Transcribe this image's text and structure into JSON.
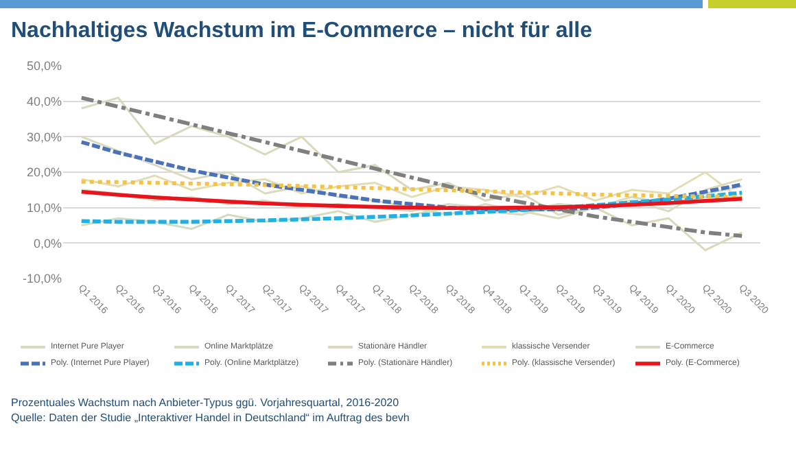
{
  "chart_data": {
    "type": "line",
    "title": "Nachhaltiges Wachstum im E-Commerce – nicht für alle",
    "categories": [
      "Q1 2016",
      "Q2 2016",
      "Q3 2016",
      "Q4 2016",
      "Q1 2017",
      "Q2 2017",
      "Q3 2017",
      "Q4 2017",
      "Q1 2018",
      "Q2 2018",
      "Q3 2018",
      "Q4 2018",
      "Q1 2019",
      "Q2 2019",
      "Q3 2019",
      "Q4 2019",
      "Q1 2020",
      "Q2 2020",
      "Q3 2020"
    ],
    "series": [
      {
        "name": "Internet Pure Player",
        "color": "#d9dcbc",
        "line_style": "solid",
        "values": [
          30,
          26,
          22,
          18,
          20,
          14,
          16,
          13,
          12,
          10,
          8,
          11,
          9,
          7,
          10,
          12,
          9,
          15,
          18
        ]
      },
      {
        "name": "Online Marktplätze",
        "color": "#d3dcbe",
        "line_style": "solid",
        "values": [
          5,
          7,
          6,
          4,
          8,
          6,
          7,
          9,
          6,
          8,
          10,
          9,
          8,
          11,
          10,
          13,
          11,
          14,
          16
        ]
      },
      {
        "name": "Stationäre Händler",
        "color": "#dbd9bb",
        "line_style": "solid",
        "values": [
          38,
          41,
          28,
          33,
          30,
          25,
          30,
          20,
          22,
          15,
          17,
          12,
          14,
          8,
          10,
          5,
          7,
          -2,
          3
        ]
      },
      {
        "name": "klassische Versender",
        "color": "#e3ddb4",
        "line_style": "solid",
        "values": [
          18,
          16,
          19,
          15,
          17,
          18,
          14,
          16,
          17,
          13,
          16,
          15,
          13,
          16,
          12,
          15,
          14,
          20,
          12
        ]
      },
      {
        "name": "E-Commerce",
        "color": "#d8dbc4",
        "line_style": "solid",
        "values": [
          15,
          14,
          12,
          13,
          11,
          12,
          10,
          11,
          10,
          9,
          11,
          10,
          9,
          11,
          10,
          12,
          11,
          13,
          13
        ]
      },
      {
        "name": "Poly. (Internet Pure Player)",
        "color": "#4a72b8",
        "line_style": "dashed",
        "values": [
          28.5,
          25.5,
          23,
          20.5,
          18.5,
          16.5,
          15,
          13.5,
          12,
          11,
          10,
          9.5,
          9.5,
          9.5,
          10,
          11,
          12.5,
          14.5,
          16.5
        ]
      },
      {
        "name": "Poly. (Online Marktplätze)",
        "color": "#1fb0e6",
        "line_style": "dashed",
        "values": [
          6.2,
          6,
          6,
          6,
          6.2,
          6.4,
          6.7,
          7,
          7.4,
          7.8,
          8.3,
          8.8,
          9.3,
          10,
          10.7,
          11.5,
          12.3,
          13.2,
          14.2
        ]
      },
      {
        "name": "Poly. (Stationäre Händler)",
        "color": "#7f7f7f",
        "line_style": "dashdot",
        "values": [
          41,
          38.5,
          36,
          33.5,
          31,
          28.5,
          26,
          23.5,
          21,
          18.5,
          16,
          13.5,
          11.5,
          9.5,
          7.5,
          6,
          4.5,
          3,
          2
        ]
      },
      {
        "name": "Poly. (klassische Versender)",
        "color": "#f5c242",
        "line_style": "dotted",
        "values": [
          17.3,
          17.2,
          17,
          16.8,
          16.6,
          16.4,
          16.1,
          15.8,
          15.5,
          15.2,
          14.9,
          14.6,
          14.3,
          14,
          13.7,
          13.5,
          13.3,
          13.2,
          13
        ]
      },
      {
        "name": "Poly. (E-Commerce)",
        "color": "#e8141c",
        "line_style": "solid",
        "values": [
          14.5,
          13.6,
          12.9,
          12.3,
          11.7,
          11.2,
          10.8,
          10.5,
          10.2,
          10,
          9.9,
          9.9,
          10,
          10.1,
          10.4,
          10.8,
          11.3,
          11.9,
          12.5
        ]
      }
    ],
    "ylim": [
      -10,
      50
    ],
    "yticks": [
      {
        "value": -10,
        "label": "-10,0%"
      },
      {
        "value": 0,
        "label": "0,0%"
      },
      {
        "value": 10,
        "label": "10,0%"
      },
      {
        "value": 20,
        "label": "20,0%"
      },
      {
        "value": 30,
        "label": "30,0%"
      },
      {
        "value": 40,
        "label": "40,0%"
      },
      {
        "value": 50,
        "label": "50,0%"
      }
    ],
    "grid": "y",
    "legend": "bottom",
    "marker": "none",
    "annotations": [
      "Prozentuales Wachstum nach Anbieter-Typus ggü. Vorjahresquartal, 2016-2020",
      "Quelle: Daten der Studie „Interaktiver Handel in Deutschland“ im Auftrag des bevh"
    ]
  }
}
